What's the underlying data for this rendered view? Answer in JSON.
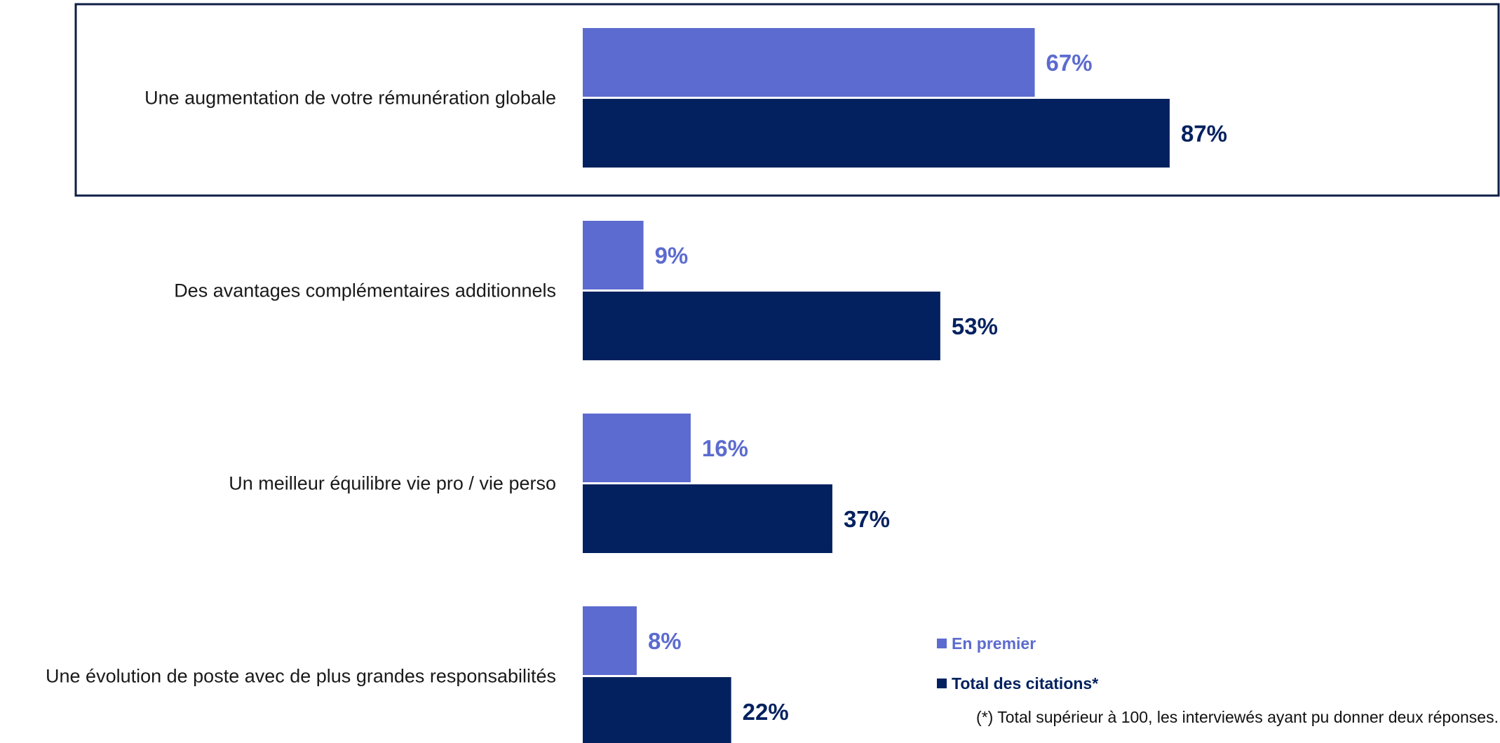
{
  "chart_data": {
    "type": "bar",
    "orientation": "horizontal",
    "categories": [
      "Une augmentation de votre rémunération globale",
      "Des avantages complémentaires additionnels",
      "Un meilleur équilibre vie pro / vie perso",
      "Une évolution de poste avec de plus grandes responsabilités"
    ],
    "series": [
      {
        "name": "En premier",
        "values": [
          67,
          9,
          16,
          8
        ],
        "color": "#5c6bcf"
      },
      {
        "name": "Total des citations*",
        "values": [
          87,
          53,
          37,
          22
        ],
        "color": "#03215f"
      }
    ],
    "value_suffix": "%",
    "highlighted_category": "Une augmentation de votre rémunération globale",
    "highlight_border_color": "#0d1e45",
    "xlim": [
      0,
      100
    ],
    "grid": false,
    "legend_position": "bottom-right"
  },
  "footnote": "(*) Total supérieur à 100, les interviewés ayant pu donner deux réponses."
}
